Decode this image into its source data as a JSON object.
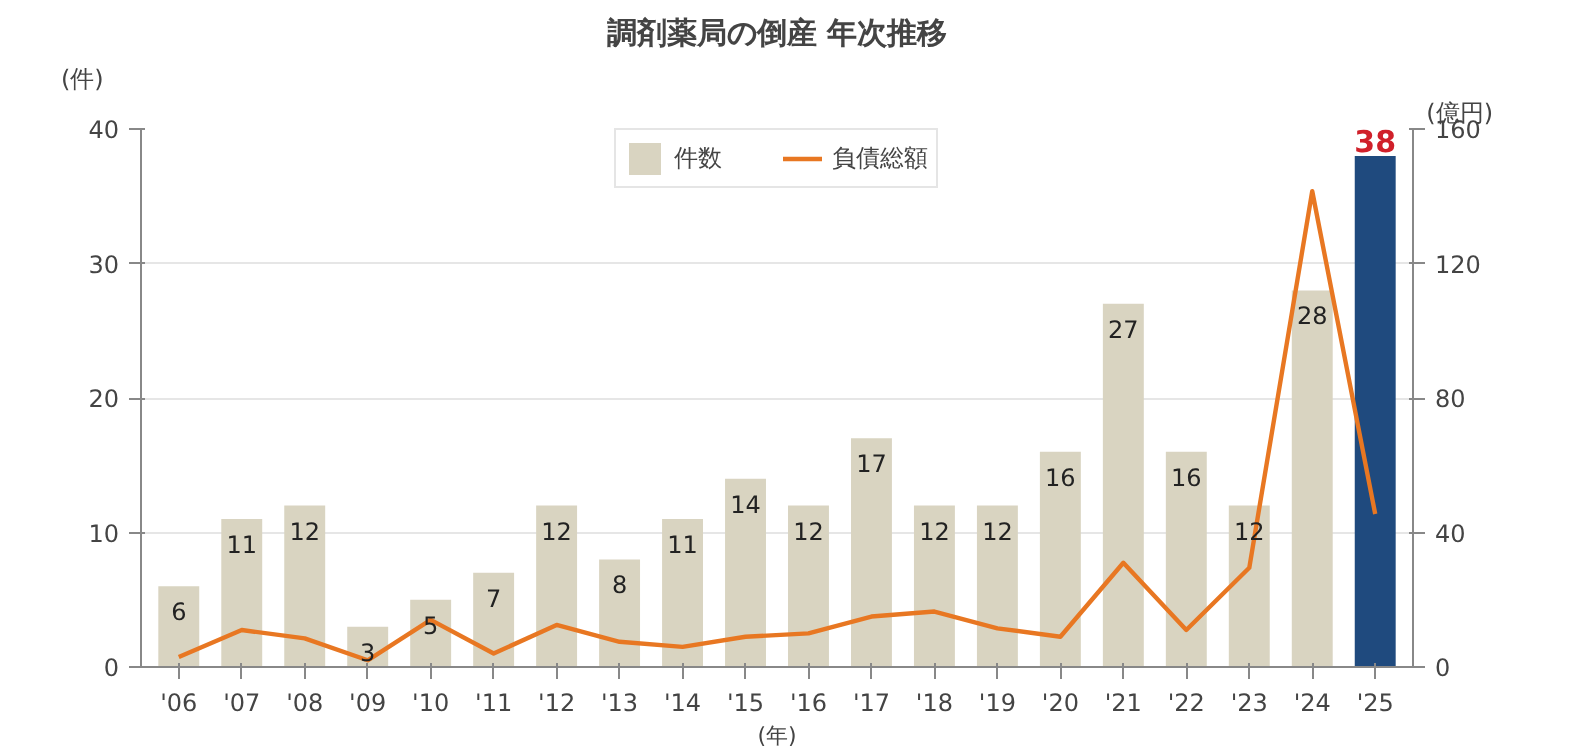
{
  "chart_data": {
    "type": "bar",
    "title": "調剤薬局の倒産 年次推移",
    "xlabel": "(年)",
    "ylabel": "(件)",
    "y2label": "(億円)",
    "categories": [
      "'06",
      "'07",
      "'08",
      "'09",
      "'10",
      "'11",
      "'12",
      "'13",
      "'14",
      "'15",
      "'16",
      "'17",
      "'18",
      "'19",
      "'20",
      "'21",
      "'22",
      "'23",
      "'24",
      "'25"
    ],
    "series": [
      {
        "name": "件数",
        "color": "#d9d4c1",
        "colors": [
          "#d9d4c1",
          "#d9d4c1",
          "#d9d4c1",
          "#d9d4c1",
          "#d9d4c1",
          "#d9d4c1",
          "#d9d4c1",
          "#d9d4c1",
          "#d9d4c1",
          "#d9d4c1",
          "#d9d4c1",
          "#d9d4c1",
          "#d9d4c1",
          "#d9d4c1",
          "#d9d4c1",
          "#d9d4c1",
          "#d9d4c1",
          "#d9d4c1",
          "#d9d4c1",
          "#1f4a7e"
        ],
        "values": [
          6,
          11,
          12,
          3,
          5,
          7,
          12,
          8,
          11,
          14,
          12,
          17,
          12,
          12,
          16,
          27,
          16,
          12,
          28,
          38
        ],
        "value_labels": [
          "6",
          "11",
          "12",
          "3",
          "5",
          "7",
          "12",
          "8",
          "11",
          "14",
          "12",
          "17",
          "12",
          "12",
          "16",
          "27",
          "16",
          "12",
          "28",
          "38"
        ]
      },
      {
        "name": "負債総額",
        "type": "line",
        "axis": "y2",
        "color": "#e87722",
        "values": [
          3,
          11,
          8.5,
          2,
          14,
          4,
          12.5,
          7.5,
          6,
          9,
          10,
          15,
          16.5,
          11.5,
          9,
          31,
          11,
          29.5,
          141.5,
          45.5
        ]
      }
    ],
    "ylim": [
      0,
      40
    ],
    "yticks": [
      0,
      10,
      20,
      30,
      40
    ],
    "y2lim": [
      0,
      160
    ],
    "y2ticks": [
      0,
      40,
      80,
      120,
      160
    ],
    "grid": "y",
    "legend": "top"
  }
}
